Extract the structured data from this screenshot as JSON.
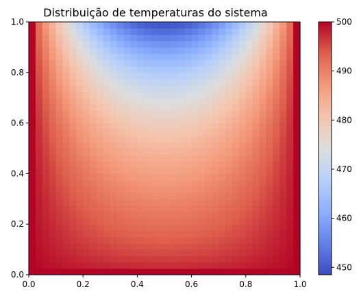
{
  "chart_data": {
    "type": "heatmap",
    "title": "Distribuição de temperaturas do sistema",
    "xlabel": "",
    "ylabel": "",
    "xlim": [
      0,
      1
    ],
    "ylim": [
      0,
      1
    ],
    "x_ticks": [
      "0.0",
      "0.2",
      "0.4",
      "0.6",
      "0.8",
      "1.0"
    ],
    "y_ticks": [
      "0.0",
      "0.2",
      "0.4",
      "0.6",
      "0.8",
      "1.0"
    ],
    "grid": false,
    "colormap": "coolwarm",
    "colorbar": {
      "min": 448.5,
      "max": 500,
      "ticks": [
        "450",
        "460",
        "470",
        "480",
        "490",
        "500"
      ],
      "placement": "right"
    },
    "field": {
      "nx": 40,
      "ny": 40,
      "boundary": {
        "left": 500,
        "right": 500,
        "bottom": 500,
        "top": "open"
      },
      "min_value": 448.5,
      "min_location": [
        0.5,
        1.0
      ]
    }
  }
}
